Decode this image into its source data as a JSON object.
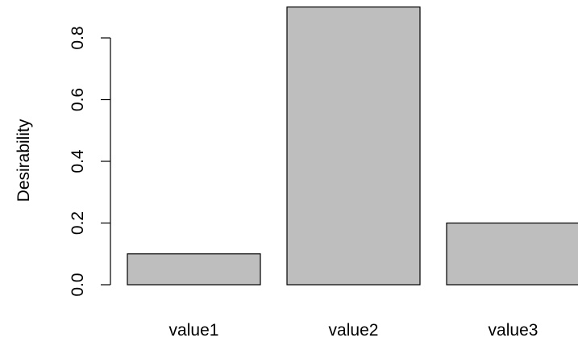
{
  "chart_data": {
    "type": "bar",
    "categories": [
      "value1",
      "value2",
      "value3"
    ],
    "values": [
      0.1,
      0.9,
      0.2
    ],
    "title": "",
    "xlabel": "",
    "ylabel": "Desirability",
    "ylim": [
      0,
      0.9
    ],
    "yticks": [
      "0.0",
      "0.2",
      "0.4",
      "0.6",
      "0.8"
    ],
    "ytick_values": [
      0.0,
      0.2,
      0.4,
      0.6,
      0.8
    ],
    "grid": false,
    "bar_color": "#bebebe",
    "border_color": "#000000"
  }
}
